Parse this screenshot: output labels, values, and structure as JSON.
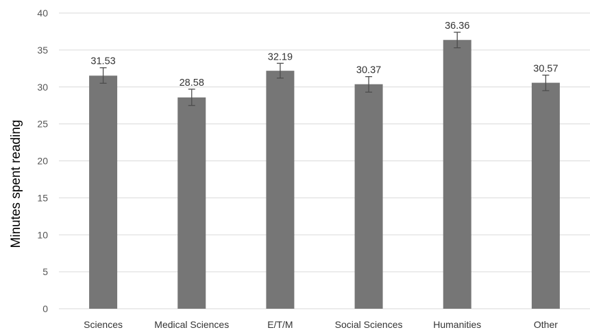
{
  "chart_data": {
    "type": "bar",
    "categories": [
      "Sciences",
      "Medical Sciences",
      "E/T/M",
      "Social Sciences",
      "Humanities",
      "Other"
    ],
    "values": [
      31.53,
      28.58,
      32.19,
      30.37,
      36.36,
      30.57
    ],
    "data_labels": [
      "31.53",
      "28.58",
      "32.19",
      "30.37",
      "36.36",
      "30.57"
    ],
    "error_bars": [
      [
        30.5,
        32.6
      ],
      [
        27.5,
        29.7
      ],
      [
        31.2,
        33.2
      ],
      [
        29.3,
        31.4
      ],
      [
        35.3,
        37.4
      ],
      [
        29.5,
        31.6
      ]
    ],
    "xlabel": "",
    "ylabel": "Minutes spent reading",
    "ylim": [
      0,
      40
    ],
    "yticks": [
      0,
      5,
      10,
      15,
      20,
      25,
      30,
      35,
      40
    ],
    "grid": true,
    "legend": "none",
    "colors": {
      "bar": "#767676",
      "grid": "#d9d9d9",
      "error": "#4d4d4d"
    }
  }
}
